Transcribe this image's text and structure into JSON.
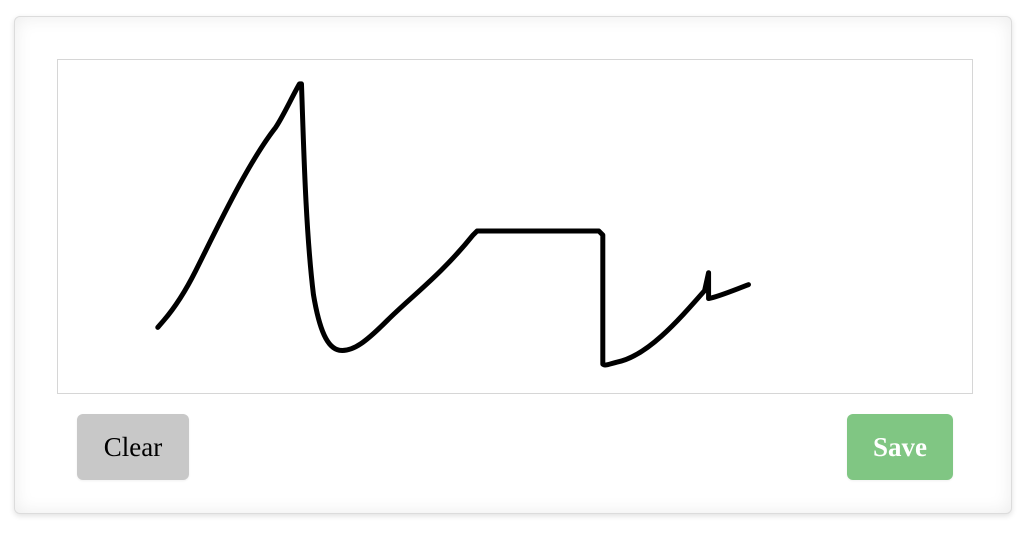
{
  "signature_pad": {
    "stroke_color": "#000000",
    "background_color": "#ffffff",
    "border_color": "#d6d6d6"
  },
  "buttons": {
    "clear": {
      "label": "Clear",
      "bg_color": "#c8c8c8",
      "text_color": "#000000"
    },
    "save": {
      "label": "Save",
      "bg_color": "#80c683",
      "text_color": "#ffffff"
    }
  }
}
